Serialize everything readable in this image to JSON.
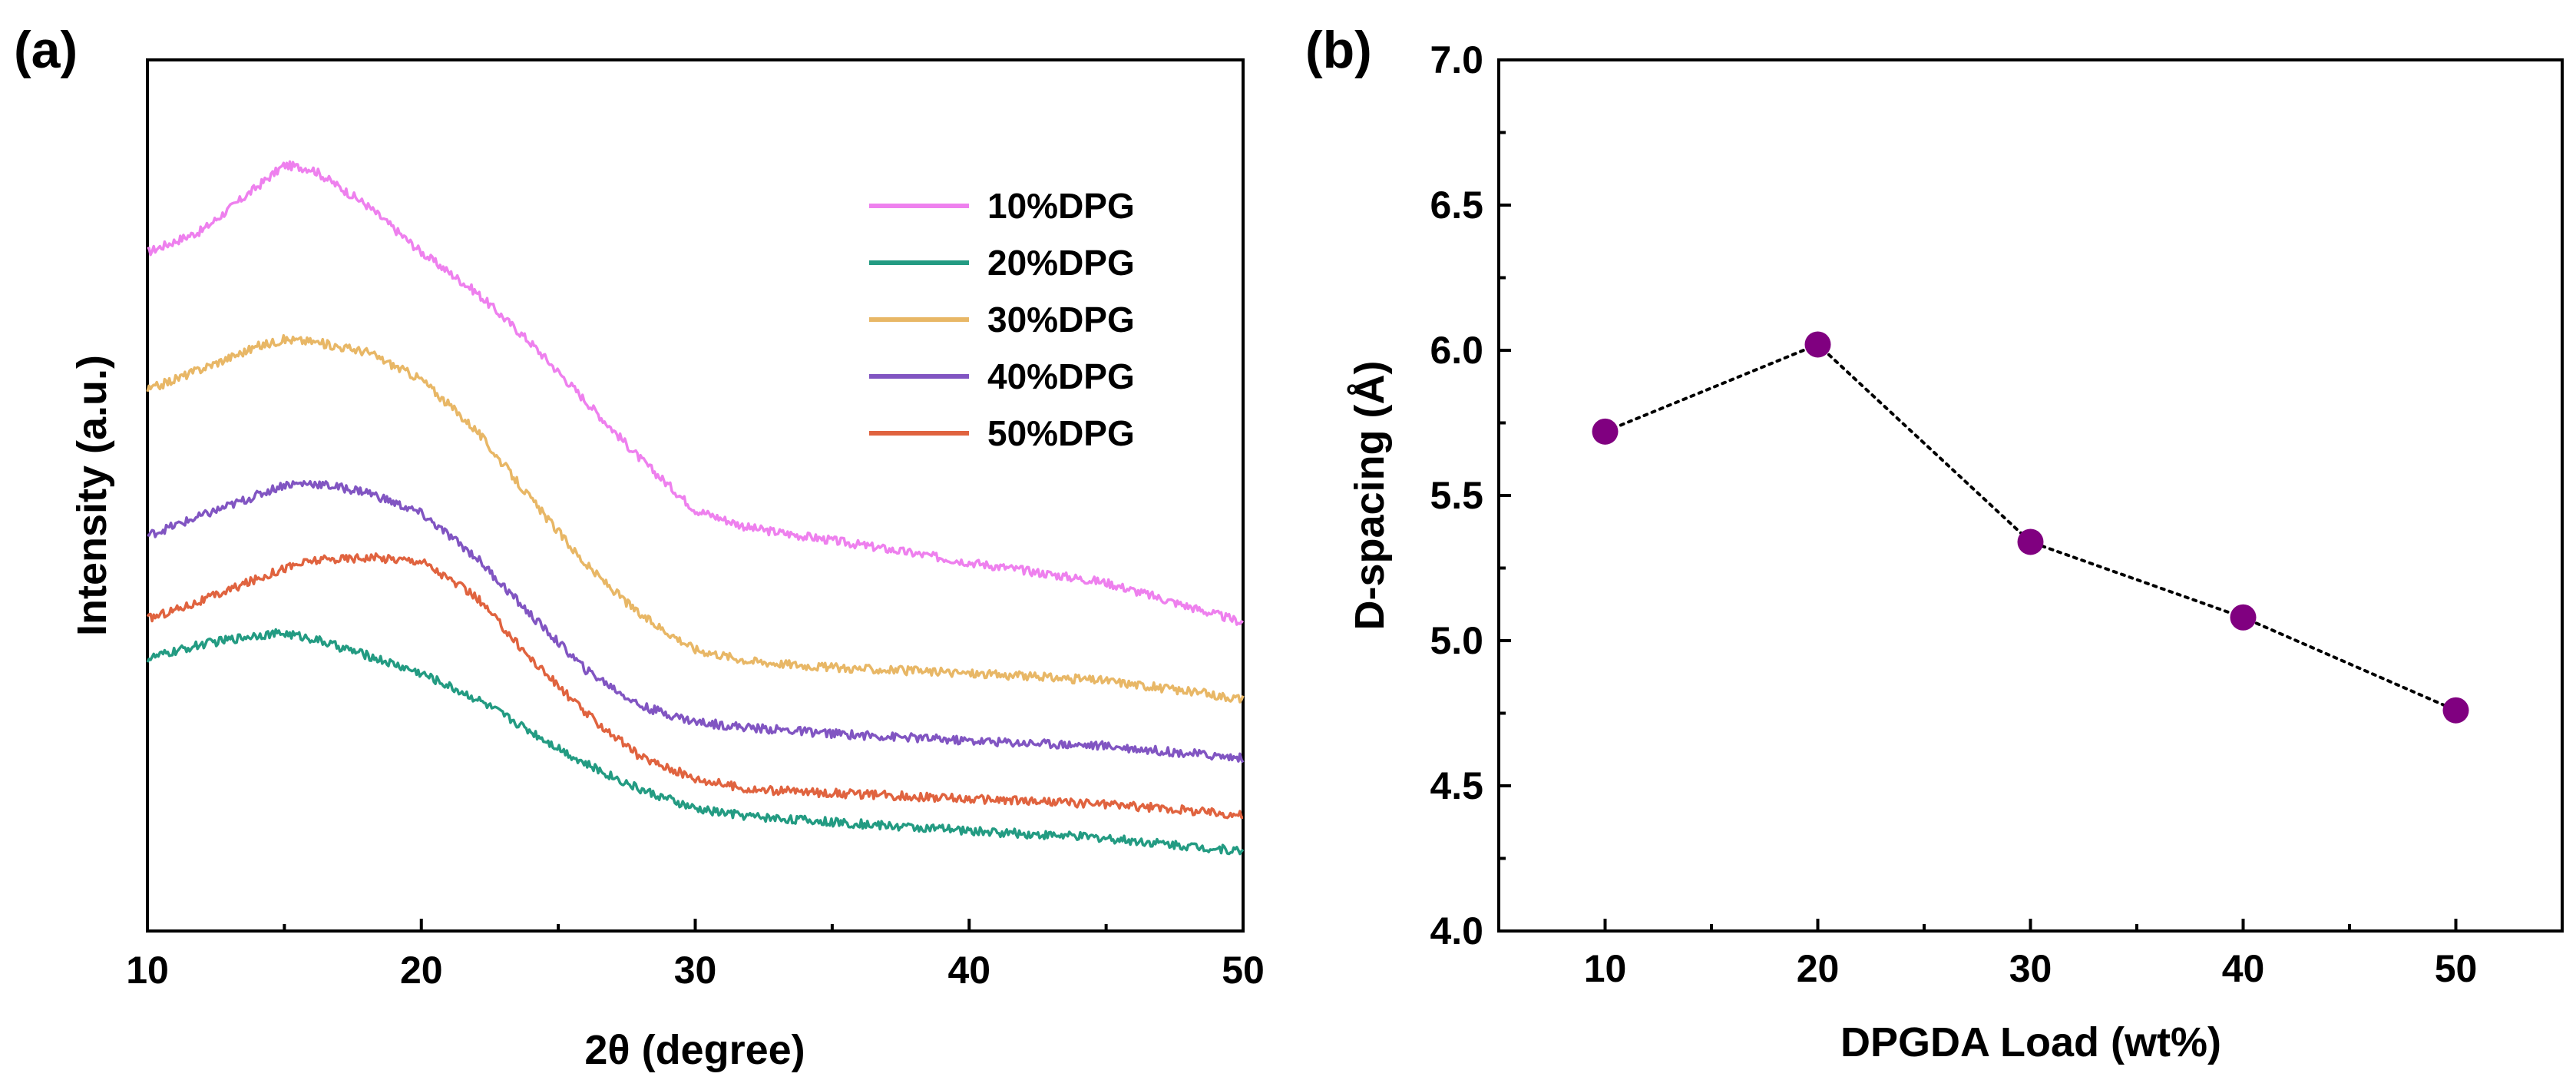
{
  "colors": {
    "10%DPG": "#ee80ee",
    "20%DPG": "#239b82",
    "30%DPG": "#e8b766",
    "40%DPG": "#8155c2",
    "50%DPG": "#e0633f",
    "marker": "#800080"
  },
  "chart_data": [
    {
      "panel": "(a)",
      "type": "line",
      "xlabel": "2θ (degree)",
      "ylabel": "Intensity (a.u.)",
      "xlim": [
        10,
        50
      ],
      "ylim": [
        0,
        12
      ],
      "xticks": [
        10,
        20,
        30,
        40,
        50
      ],
      "x": [
        10,
        12,
        14,
        15,
        16,
        18,
        20,
        22,
        24,
        26,
        28,
        30,
        32,
        35,
        40,
        45,
        50
      ],
      "series": [
        {
          "name": "10%DPG",
          "values": [
            9.35,
            9.65,
            10.25,
            10.55,
            10.5,
            10.0,
            9.35,
            8.8,
            8.1,
            7.3,
            6.5,
            5.8,
            5.55,
            5.38,
            5.08,
            4.8,
            4.25
          ]
        },
        {
          "name": "20%DPG",
          "values": [
            3.75,
            3.95,
            4.08,
            4.1,
            4.03,
            3.8,
            3.55,
            3.2,
            2.75,
            2.3,
            1.95,
            1.68,
            1.58,
            1.5,
            1.38,
            1.28,
            1.1
          ]
        },
        {
          "name": "30%DPG",
          "values": [
            7.45,
            7.75,
            8.05,
            8.15,
            8.12,
            7.98,
            7.6,
            6.9,
            5.95,
            5.05,
            4.35,
            3.88,
            3.72,
            3.63,
            3.55,
            3.45,
            3.2
          ]
        },
        {
          "name": "40%DPG",
          "values": [
            5.45,
            5.72,
            6.0,
            6.15,
            6.17,
            6.05,
            5.75,
            5.15,
            4.35,
            3.6,
            3.1,
            2.88,
            2.8,
            2.72,
            2.62,
            2.55,
            2.38
          ]
        },
        {
          "name": "50%DPG",
          "values": [
            4.3,
            4.55,
            4.85,
            5.0,
            5.1,
            5.15,
            5.1,
            4.6,
            3.75,
            3.0,
            2.4,
            2.1,
            1.95,
            1.9,
            1.82,
            1.75,
            1.6
          ]
        }
      ],
      "legend": [
        "10%DPG",
        "20%DPG",
        "30%DPG",
        "40%DPG",
        "50%DPG"
      ],
      "legend_position": "top-right"
    },
    {
      "panel": "(b)",
      "type": "scatter",
      "xlabel": "DPGDA Load (wt%)",
      "ylabel": "D-spacing (Å)",
      "xlim": [
        5,
        55
      ],
      "ylim": [
        4.0,
        7.0
      ],
      "xticks": [
        10,
        20,
        30,
        40,
        50
      ],
      "yticks": [
        "4.0",
        "4.5",
        "5.0",
        "5.5",
        "6.0",
        "6.5",
        "7.0"
      ],
      "x": [
        10,
        20,
        30,
        40,
        50
      ],
      "values": [
        5.72,
        6.02,
        5.34,
        5.08,
        4.76
      ],
      "line": "dotted"
    }
  ]
}
